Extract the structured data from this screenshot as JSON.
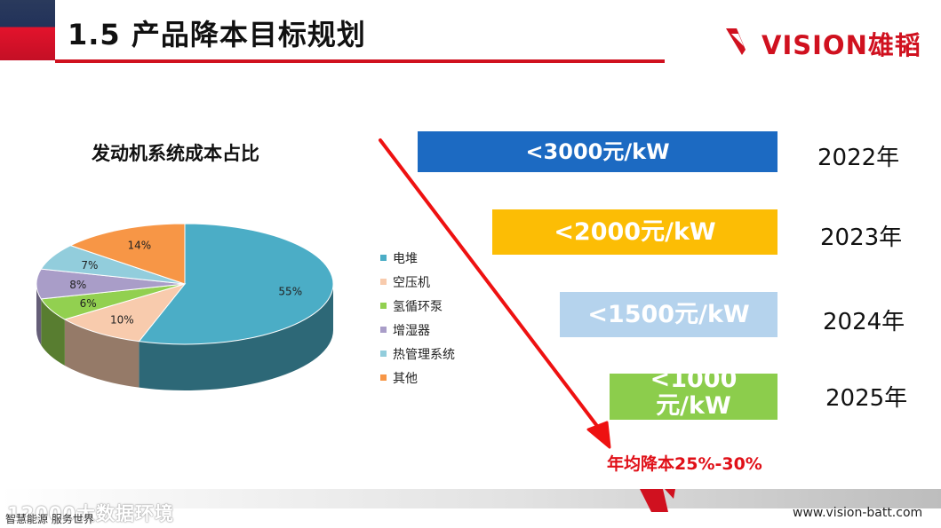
{
  "header": {
    "title": "1.5 产品降本目标规划",
    "logo_text": "VISION雄韬"
  },
  "pie_chart": {
    "title": "发动机系统成本占比",
    "chart_data": {
      "type": "pie",
      "title": "发动机系统成本占比",
      "style": "3D",
      "legend_placement": "right",
      "slices": [
        {
          "name": "电堆",
          "value": 55,
          "label": "55%",
          "color": "#4badc6"
        },
        {
          "name": "空压机",
          "value": 10,
          "label": "10%",
          "color": "#f8cbad"
        },
        {
          "name": "氢循环泵",
          "value": 6,
          "label": "6%",
          "color": "#92d050"
        },
        {
          "name": "增湿器",
          "value": 8,
          "label": "8%",
          "color": "#a99dc8"
        },
        {
          "name": "热管理系统",
          "value": 7,
          "label": "7%",
          "color": "#92cddc"
        },
        {
          "name": "其他",
          "value": 14,
          "label": "14%",
          "color": "#f79646"
        }
      ]
    }
  },
  "targets": [
    {
      "label": "<3000元/kW",
      "year": "2022年",
      "color": "#1c6ac2"
    },
    {
      "label": "<2000元/kW",
      "year": "2023年",
      "color": "#fcbd05"
    },
    {
      "label": "<1500元/kW",
      "year": "2024年",
      "color": "#b5d3ed"
    },
    {
      "label": "<1000元/kW",
      "year": "2025年",
      "color": "#8ccd4c"
    }
  ],
  "annotation": {
    "text": "年均降本25%-30%",
    "color": "#e01018"
  },
  "footer": {
    "watermark": "12000大数据环境",
    "slogan": "智慧能源 服务世界",
    "url": "www.vision-batt.com"
  }
}
